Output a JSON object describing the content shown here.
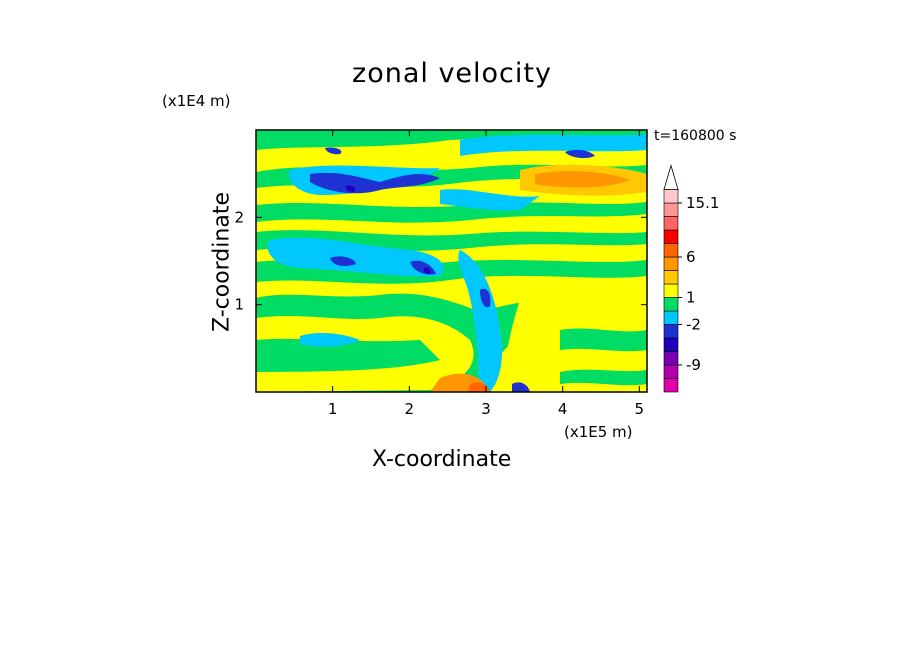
{
  "chart_data": {
    "type": "heatmap",
    "title": "zonal velocity",
    "xlabel": "X-coordinate",
    "ylabel": "Z-coordinate",
    "x_unit": "(x1E5 m)",
    "y_unit": "(x1E4 m)",
    "time_label": "t=160800 s",
    "x_ticks": [
      "1",
      "2",
      "3",
      "4",
      "5"
    ],
    "x_tick_values": [
      1,
      2,
      3,
      4,
      5
    ],
    "y_ticks": [
      "1",
      "2"
    ],
    "y_tick_values": [
      1,
      2
    ],
    "xlim": [
      0,
      5.1
    ],
    "ylim": [
      0,
      3.0
    ],
    "colorbar": {
      "labels": [
        "15.1",
        "6",
        "1",
        "-2",
        "-9"
      ],
      "label_values": [
        15.1,
        6,
        1,
        -2,
        -9
      ],
      "colors": [
        "#e000a8",
        "#b000b0",
        "#7800b4",
        "#2000c0",
        "#1e32d4",
        "#00c8ff",
        "#00dc64",
        "#ffff00",
        "#ffc800",
        "#ff9600",
        "#ff6400",
        "#ff0000",
        "#ff6464",
        "#ff9696",
        "#ffc8c8"
      ],
      "extend": "max"
    }
  }
}
